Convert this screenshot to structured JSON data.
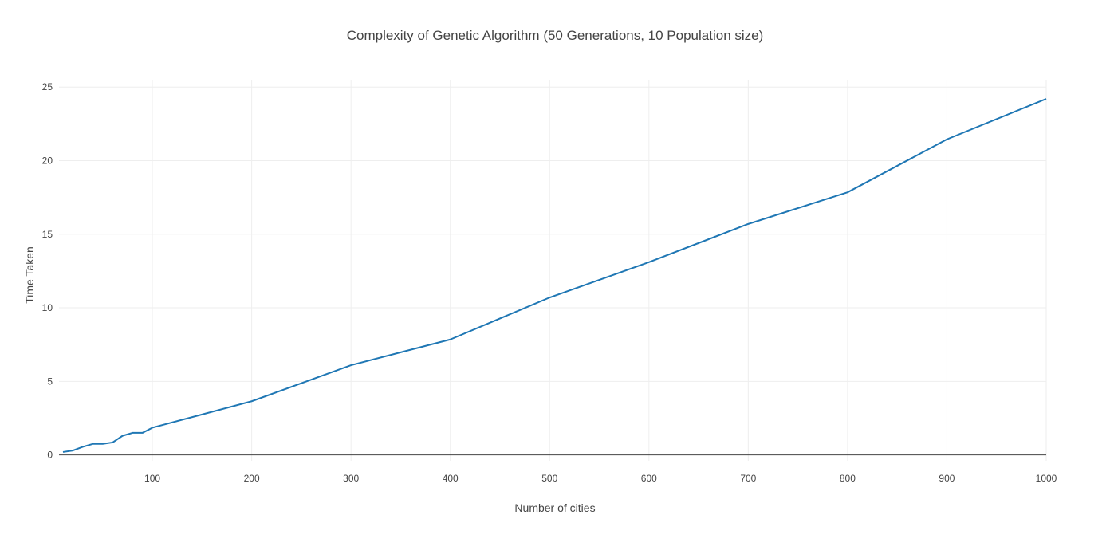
{
  "chart_data": {
    "type": "line",
    "title": "Complexity of Genetic Algorithm (50 Generations, 10 Population size)",
    "xlabel": "Number of cities",
    "ylabel": "Time Taken",
    "xlim": [
      6,
      1000
    ],
    "ylim": [
      -0.4,
      25.5
    ],
    "x_ticks": [
      100,
      200,
      300,
      400,
      500,
      600,
      700,
      800,
      900,
      1000
    ],
    "y_ticks": [
      0,
      5,
      10,
      15,
      20,
      25
    ],
    "grid": true,
    "legend": "none",
    "line_color": "#1f77b4",
    "series": [
      {
        "x": [
          10,
          20,
          30,
          40,
          50,
          60,
          70,
          80,
          90,
          100,
          200,
          300,
          400,
          500,
          600,
          700,
          800,
          900,
          1000
        ],
        "values": [
          0.2,
          0.3,
          0.55,
          0.75,
          0.75,
          0.85,
          1.3,
          1.5,
          1.5,
          1.85,
          3.65,
          6.1,
          7.85,
          10.7,
          13.1,
          15.7,
          17.85,
          21.45,
          24.2
        ]
      }
    ]
  }
}
